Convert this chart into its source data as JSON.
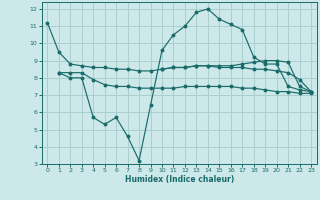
{
  "xlabel": "Humidex (Indice chaleur)",
  "xlim": [
    -0.5,
    23.5
  ],
  "ylim": [
    3,
    12.4
  ],
  "yticks": [
    3,
    4,
    5,
    6,
    7,
    8,
    9,
    10,
    11,
    12
  ],
  "xticks": [
    0,
    1,
    2,
    3,
    4,
    5,
    6,
    7,
    8,
    9,
    10,
    11,
    12,
    13,
    14,
    15,
    16,
    17,
    18,
    19,
    20,
    21,
    22,
    23
  ],
  "background_color": "#cce8e8",
  "grid_color": "#aacece",
  "line_color": "#1a6b6b",
  "line1_x": [
    0,
    1,
    2,
    3,
    4,
    5,
    6,
    7,
    8,
    9,
    10,
    11,
    12,
    13,
    14,
    15,
    16,
    17,
    18,
    19,
    20,
    21,
    22,
    23
  ],
  "line1_y": [
    11.2,
    9.5,
    8.8,
    8.7,
    8.6,
    8.6,
    8.5,
    8.5,
    8.4,
    8.4,
    8.5,
    8.6,
    8.6,
    8.7,
    8.7,
    8.7,
    8.7,
    8.8,
    8.9,
    9.0,
    9.0,
    8.9,
    7.5,
    7.2
  ],
  "line2_x": [
    1,
    2,
    3,
    4,
    5,
    6,
    7,
    8,
    9,
    10,
    11,
    12,
    13,
    14,
    15,
    16,
    17,
    18,
    19,
    20,
    21,
    22,
    23
  ],
  "line2_y": [
    8.3,
    8.3,
    8.3,
    7.9,
    7.6,
    7.5,
    7.5,
    7.4,
    7.4,
    7.4,
    7.4,
    7.5,
    7.5,
    7.5,
    7.5,
    7.5,
    7.4,
    7.4,
    7.3,
    7.2,
    7.2,
    7.1,
    7.1
  ],
  "line3_x": [
    1,
    2,
    3,
    4,
    5,
    6,
    7,
    8,
    9,
    10,
    11,
    12,
    13,
    14,
    15,
    16,
    17,
    18,
    19,
    20,
    21,
    22,
    23
  ],
  "line3_y": [
    8.3,
    8.0,
    8.0,
    5.7,
    5.3,
    5.7,
    4.6,
    3.2,
    6.4,
    9.6,
    10.5,
    11.0,
    11.8,
    12.0,
    11.4,
    11.1,
    10.8,
    9.2,
    8.8,
    8.8,
    7.5,
    7.3,
    7.2
  ],
  "line4_x": [
    10,
    11,
    12,
    13,
    14,
    15,
    16,
    17,
    18,
    19,
    20,
    21,
    22,
    23
  ],
  "line4_y": [
    8.5,
    8.6,
    8.6,
    8.7,
    8.7,
    8.6,
    8.6,
    8.6,
    8.5,
    8.5,
    8.4,
    8.3,
    7.9,
    7.2
  ]
}
